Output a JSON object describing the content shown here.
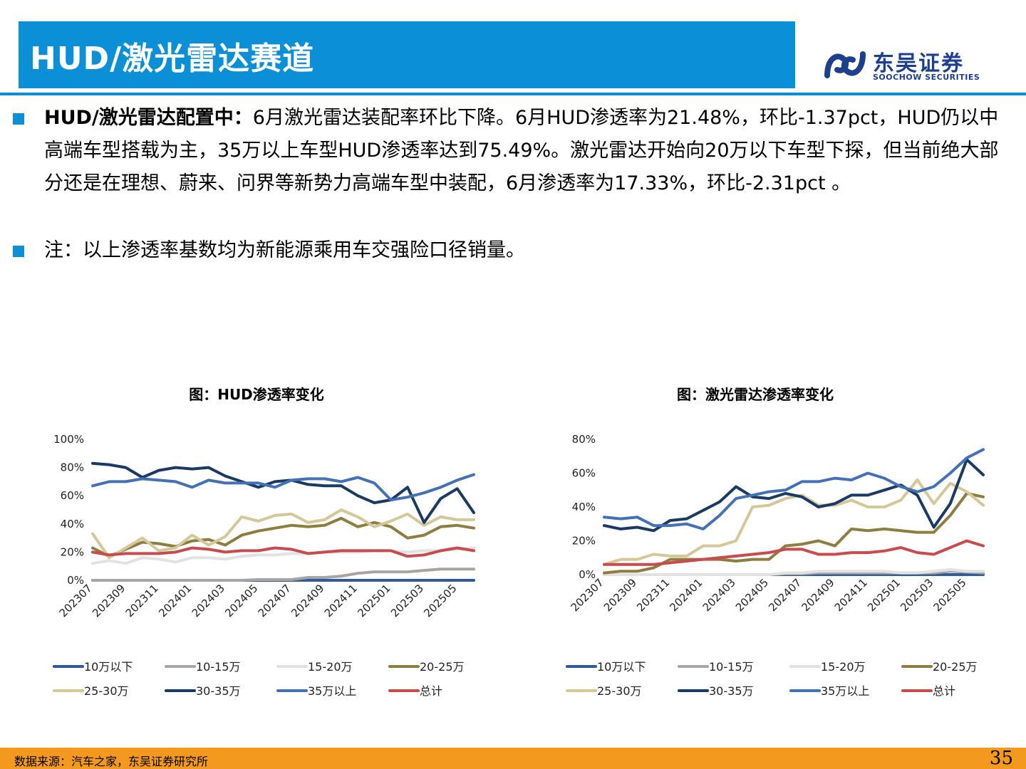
{
  "header": {
    "title": "HUD/激光雷达赛道"
  },
  "logo": {
    "cn": "东吴证券",
    "en": "SOOCHOW SECURITIES"
  },
  "bullets": [
    {
      "lead": "HUD/激光雷达配置中：",
      "text": "6月激光雷达装配率环比下降。6月HUD渗透率为21.48%，环比-1.37pct，HUD仍以中高端车型搭载为主，35万以上车型HUD渗透率达到75.49%。激光雷达开始向20万以下车型下探，但当前绝大部分还是在理想、蔚来、问界等新势力高端车型中装配，6月渗透率为17.33%，环比-2.31pct 。"
    },
    {
      "lead": "",
      "text": "注：以上渗透率基数均为新能源乘用车交强险口径销量。"
    }
  ],
  "footer": {
    "source": "数据来源：汽车之家，东吴证券研究所",
    "page": "35"
  },
  "colors": {
    "accent": "#0b8fd6",
    "footer": "#f39a1e",
    "series": [
      "#2e5b9c",
      "#a5a5a5",
      "#e2e2e2",
      "#8e7d3e",
      "#d4c798",
      "#1b3a63",
      "#4471b6",
      "#c84b4e"
    ]
  },
  "chart_data": [
    {
      "type": "line",
      "title": "图：HUD渗透率变化",
      "xlabel": "",
      "ylabel": "",
      "ylim": [
        0,
        1.0
      ],
      "yticks": [
        "0%",
        "20%",
        "40%",
        "60%",
        "80%",
        "100%"
      ],
      "x": [
        "202307",
        "202308",
        "202309",
        "202310",
        "202311",
        "202312",
        "202401",
        "202402",
        "202403",
        "202404",
        "202405",
        "202406",
        "202407",
        "202408",
        "202409",
        "202410",
        "202411",
        "202412",
        "202501",
        "202502",
        "202503",
        "202504",
        "202505",
        "202506"
      ],
      "xtick_labels": [
        "202307",
        "202309",
        "202311",
        "202401",
        "202403",
        "202405",
        "202407",
        "202409",
        "202411",
        "202501",
        "202503",
        "202505"
      ],
      "series": [
        {
          "name": "10万以下",
          "values": [
            0,
            0,
            0,
            0,
            0,
            0,
            0,
            0,
            0,
            0,
            0,
            0,
            0,
            0,
            0,
            0,
            0,
            0,
            0,
            0,
            0,
            0,
            0,
            0
          ]
        },
        {
          "name": "10-15万",
          "values": [
            0,
            0,
            0,
            0,
            0,
            0,
            0,
            0,
            0,
            0,
            0.005,
            0.005,
            0.005,
            0.02,
            0.02,
            0.03,
            0.05,
            0.06,
            0.06,
            0.06,
            0.07,
            0.08,
            0.08,
            0.08
          ]
        },
        {
          "name": "15-20万",
          "values": [
            0.12,
            0.14,
            0.12,
            0.16,
            0.15,
            0.13,
            0.16,
            0.16,
            0.15,
            0.17,
            0.18,
            0.18,
            0.19,
            0.19,
            0.2,
            0.2,
            0.2,
            0.21,
            0.21,
            0.2,
            0.21,
            0.21,
            0.22,
            0.23
          ]
        },
        {
          "name": "20-25万",
          "values": [
            0.23,
            0.17,
            0.22,
            0.27,
            0.26,
            0.24,
            0.28,
            0.29,
            0.25,
            0.32,
            0.35,
            0.37,
            0.39,
            0.38,
            0.39,
            0.44,
            0.38,
            0.41,
            0.38,
            0.3,
            0.32,
            0.38,
            0.39,
            0.37
          ]
        },
        {
          "name": "25-30万",
          "values": [
            0.33,
            0.16,
            0.23,
            0.3,
            0.21,
            0.23,
            0.32,
            0.25,
            0.31,
            0.45,
            0.42,
            0.46,
            0.47,
            0.41,
            0.43,
            0.5,
            0.45,
            0.38,
            0.42,
            0.47,
            0.39,
            0.45,
            0.43,
            0.43
          ]
        },
        {
          "name": "30-35万",
          "values": [
            0.83,
            0.82,
            0.8,
            0.73,
            0.78,
            0.8,
            0.79,
            0.8,
            0.74,
            0.7,
            0.66,
            0.7,
            0.71,
            0.68,
            0.67,
            0.67,
            0.6,
            0.55,
            0.57,
            0.66,
            0.41,
            0.58,
            0.65,
            0.48
          ]
        },
        {
          "name": "35万以上",
          "values": [
            0.67,
            0.7,
            0.7,
            0.72,
            0.71,
            0.7,
            0.66,
            0.71,
            0.69,
            0.69,
            0.69,
            0.66,
            0.71,
            0.72,
            0.72,
            0.7,
            0.73,
            0.69,
            0.57,
            0.59,
            0.62,
            0.66,
            0.71,
            0.75
          ]
        },
        {
          "name": "总计",
          "values": [
            0.2,
            0.18,
            0.19,
            0.19,
            0.19,
            0.2,
            0.23,
            0.22,
            0.2,
            0.21,
            0.21,
            0.23,
            0.22,
            0.19,
            0.2,
            0.21,
            0.21,
            0.21,
            0.21,
            0.17,
            0.18,
            0.21,
            0.23,
            0.21
          ]
        }
      ]
    },
    {
      "type": "line",
      "title": "图：激光雷达渗透率变化",
      "xlabel": "",
      "ylabel": "",
      "ylim": [
        0,
        0.8
      ],
      "yticks": [
        "0%",
        "20%",
        "40%",
        "60%",
        "80%"
      ],
      "x": [
        "202307",
        "202308",
        "202309",
        "202310",
        "202311",
        "202312",
        "202401",
        "202402",
        "202403",
        "202404",
        "202405",
        "202406",
        "202407",
        "202408",
        "202409",
        "202410",
        "202411",
        "202412",
        "202501",
        "202502",
        "202503",
        "202504",
        "202505",
        "202506"
      ],
      "xtick_labels": [
        "202307",
        "202309",
        "202311",
        "202401",
        "202403",
        "202405",
        "202407",
        "202409",
        "202411",
        "202501",
        "202503",
        "202505"
      ],
      "series": [
        {
          "name": "10万以下",
          "values": [
            0,
            0,
            0,
            0,
            0,
            0,
            0,
            0,
            0,
            0,
            0,
            0,
            0,
            0,
            0,
            0,
            0,
            0,
            0,
            0,
            0,
            0,
            0,
            0
          ]
        },
        {
          "name": "10-15万",
          "values": [
            0,
            0,
            0,
            0,
            0,
            0,
            0,
            0,
            0,
            0,
            0,
            0.005,
            0.005,
            0.01,
            0.01,
            0.01,
            0.01,
            0.01,
            0.01,
            0.01,
            0.01,
            0.02,
            0.015,
            0.01
          ]
        },
        {
          "name": "15-20万",
          "values": [
            0,
            0,
            0,
            0,
            0,
            0,
            0,
            0,
            0,
            0,
            0,
            0.01,
            0.01,
            0.02,
            0.02,
            0.02,
            0.02,
            0.02,
            0.01,
            0.01,
            0.02,
            0.03,
            0.02,
            0.02
          ]
        },
        {
          "name": "20-25万",
          "values": [
            0.01,
            0.02,
            0.02,
            0.04,
            0.09,
            0.09,
            0.09,
            0.09,
            0.08,
            0.09,
            0.09,
            0.17,
            0.18,
            0.2,
            0.17,
            0.27,
            0.26,
            0.27,
            0.26,
            0.25,
            0.25,
            0.35,
            0.48,
            0.46
          ]
        },
        {
          "name": "25-30万",
          "values": [
            0.06,
            0.09,
            0.09,
            0.12,
            0.11,
            0.11,
            0.17,
            0.17,
            0.2,
            0.4,
            0.41,
            0.45,
            0.47,
            0.41,
            0.41,
            0.44,
            0.4,
            0.4,
            0.44,
            0.56,
            0.42,
            0.54,
            0.49,
            0.41
          ]
        },
        {
          "name": "30-35万",
          "values": [
            0.29,
            0.27,
            0.28,
            0.26,
            0.32,
            0.33,
            0.38,
            0.43,
            0.52,
            0.46,
            0.45,
            0.48,
            0.46,
            0.4,
            0.42,
            0.47,
            0.47,
            0.5,
            0.53,
            0.47,
            0.28,
            0.42,
            0.68,
            0.59
          ]
        },
        {
          "name": "35万以上",
          "values": [
            0.34,
            0.33,
            0.34,
            0.29,
            0.29,
            0.3,
            0.27,
            0.35,
            0.45,
            0.47,
            0.49,
            0.5,
            0.55,
            0.55,
            0.57,
            0.56,
            0.6,
            0.57,
            0.52,
            0.49,
            0.52,
            0.6,
            0.69,
            0.74
          ]
        },
        {
          "name": "总计",
          "values": [
            0.06,
            0.06,
            0.06,
            0.06,
            0.07,
            0.08,
            0.09,
            0.1,
            0.11,
            0.12,
            0.13,
            0.15,
            0.15,
            0.12,
            0.12,
            0.13,
            0.13,
            0.14,
            0.16,
            0.13,
            0.12,
            0.16,
            0.2,
            0.17
          ]
        }
      ]
    }
  ]
}
